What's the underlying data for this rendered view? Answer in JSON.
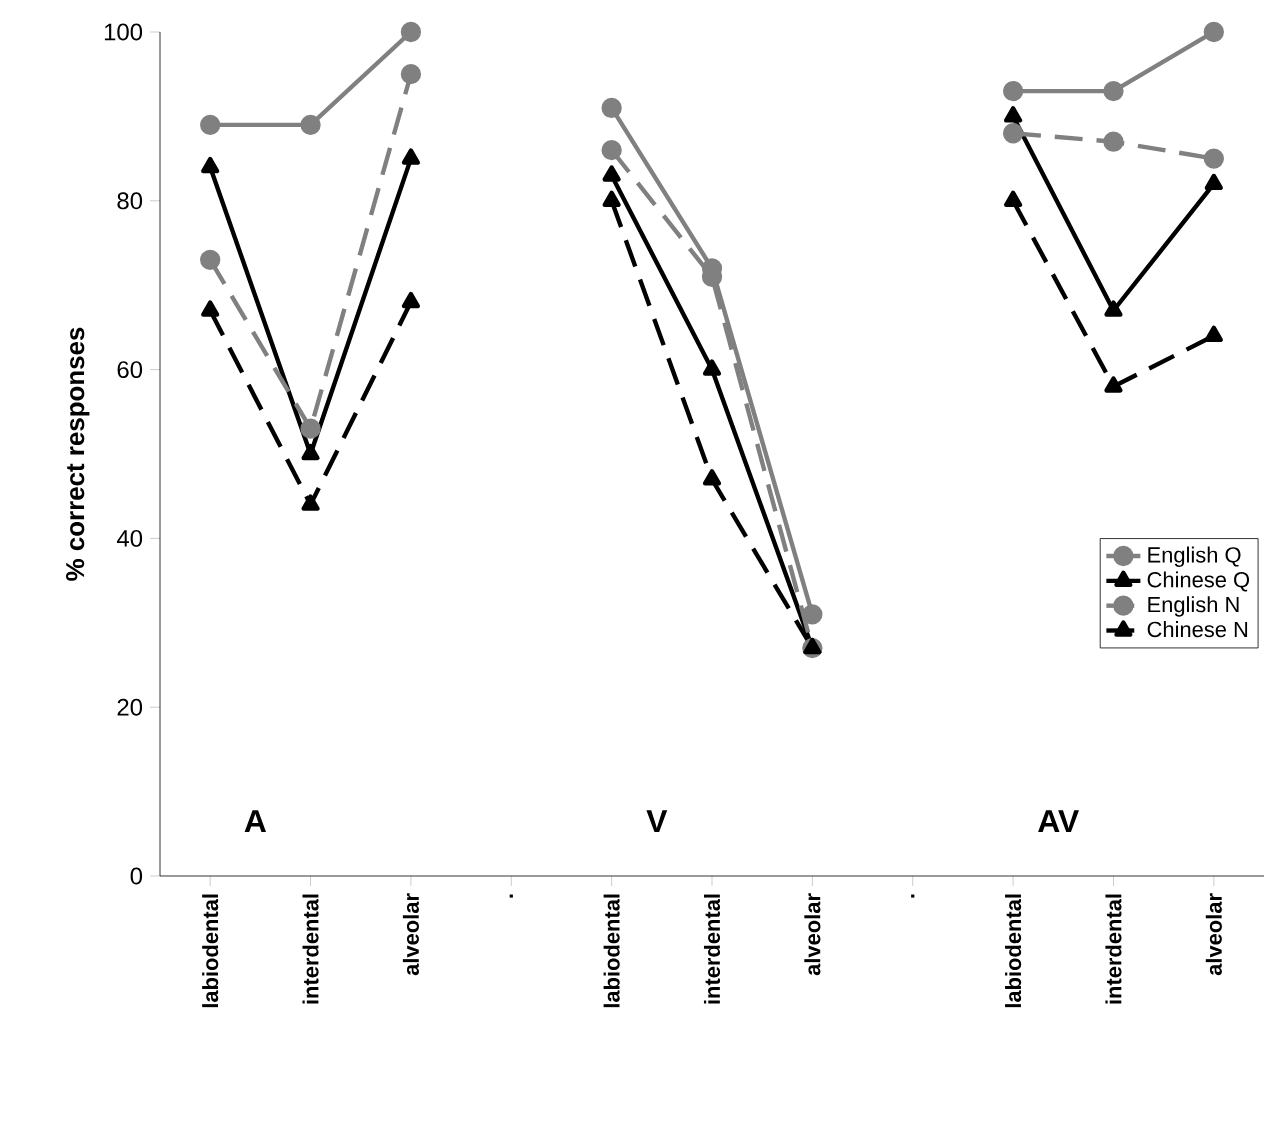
{
  "chart_data": {
    "type": "line",
    "ylabel": "% correct responses",
    "categories": [
      "labiodental",
      "interdental",
      "alveolar",
      ".",
      "labiodental",
      "interdental",
      "alveolar",
      ".",
      "labiodental",
      "interdental",
      "alveolar"
    ],
    "series": [
      {
        "name": "English Q",
        "color": "#808080",
        "marker": "circle",
        "line_style": "solid",
        "values": [
          89,
          89,
          100,
          null,
          91,
          72,
          31,
          null,
          93,
          93,
          100
        ]
      },
      {
        "name": "Chinese Q",
        "color": "#000000",
        "marker": "triangle",
        "line_style": "solid",
        "values": [
          84,
          50,
          85,
          null,
          83,
          60,
          27,
          null,
          90,
          67,
          82
        ]
      },
      {
        "name": "English N",
        "color": "#808080",
        "marker": "circle",
        "line_style": "dashed",
        "values": [
          73,
          53,
          95,
          null,
          86,
          71,
          27,
          null,
          88,
          87,
          85
        ]
      },
      {
        "name": "Chinese N",
        "color": "#000000",
        "marker": "triangle",
        "line_style": "dashed",
        "values": [
          67,
          44,
          68,
          null,
          80,
          47,
          27,
          null,
          80,
          58,
          64
        ]
      }
    ],
    "ylim": [
      0,
      100
    ],
    "yticks": [
      0,
      20,
      40,
      60,
      80,
      100
    ],
    "annotations": [
      "A",
      "V",
      "AV"
    ],
    "legend": "right",
    "grid": false
  }
}
